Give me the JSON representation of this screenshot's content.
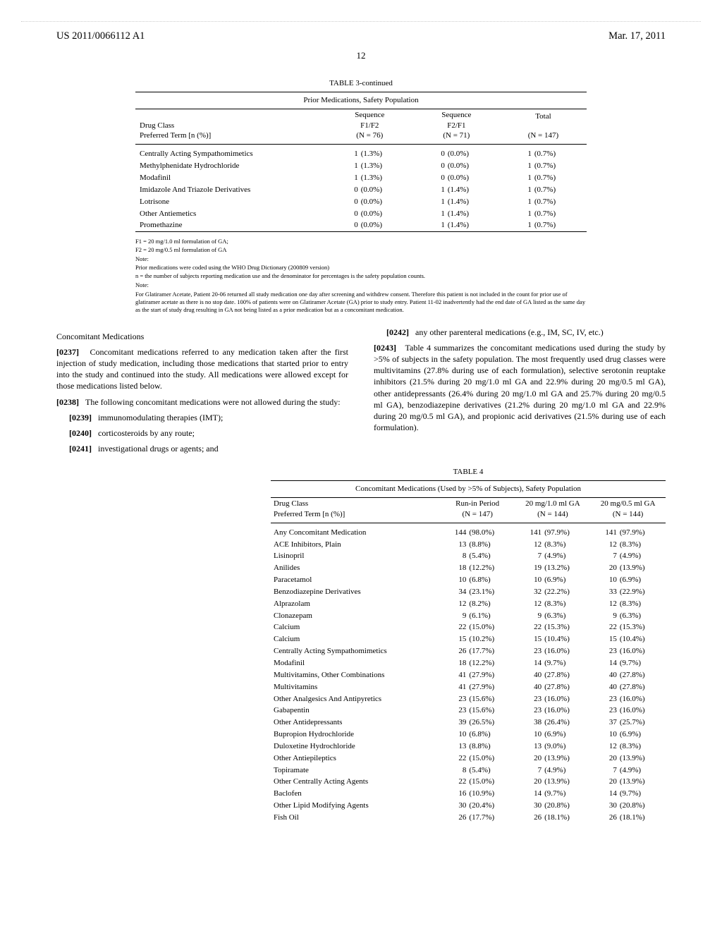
{
  "header": {
    "pubnum": "US 2011/0066112 A1",
    "date": "Mar. 17, 2011",
    "pagenum": "12"
  },
  "table3": {
    "caption": "TABLE 3-continued",
    "subcaption": "Prior Medications, Safety Population",
    "col_headers": {
      "drug": "Drug Class",
      "drug2": "Preferred Term [n (%)]",
      "seq1": "Sequence",
      "seq1b": "F1/F2",
      "seq1n": "(N = 76)",
      "seq2": "Sequence",
      "seq2b": "F2/F1",
      "seq2n": "(N = 71)",
      "total": "Total",
      "totaln": "(N = 147)"
    },
    "rows": [
      {
        "label": "Centrally Acting Sympathomimetics",
        "n1": "1",
        "p1": "(1.3%)",
        "n2": "0",
        "p2": "(0.0%)",
        "nt": "1",
        "pt": "(0.7%)"
      },
      {
        "label": "Methylphenidate Hydrochloride",
        "n1": "1",
        "p1": "(1.3%)",
        "n2": "0",
        "p2": "(0.0%)",
        "nt": "1",
        "pt": "(0.7%)"
      },
      {
        "label": "Modafinil",
        "n1": "1",
        "p1": "(1.3%)",
        "n2": "0",
        "p2": "(0.0%)",
        "nt": "1",
        "pt": "(0.7%)"
      },
      {
        "label": "Imidazole And Triazole Derivatives",
        "n1": "0",
        "p1": "(0.0%)",
        "n2": "1",
        "p2": "(1.4%)",
        "nt": "1",
        "pt": "(0.7%)"
      },
      {
        "label": "Lotrisone",
        "n1": "0",
        "p1": "(0.0%)",
        "n2": "1",
        "p2": "(1.4%)",
        "nt": "1",
        "pt": "(0.7%)"
      },
      {
        "label": "Other Antiemetics",
        "n1": "0",
        "p1": "(0.0%)",
        "n2": "1",
        "p2": "(1.4%)",
        "nt": "1",
        "pt": "(0.7%)"
      },
      {
        "label": "Promethazine",
        "n1": "0",
        "p1": "(0.0%)",
        "n2": "1",
        "p2": "(1.4%)",
        "nt": "1",
        "pt": "(0.7%)"
      }
    ],
    "footnotes": [
      "F1 = 20 mg/1.0 ml formulation of GA;",
      "F2 = 20 mg/0.5 ml formulation of GA",
      "Note:",
      "Prior medications were coded using the WHO Drug Dictionary (200809 version)",
      "n = the number of subjects reporting medication use and the denominator for percentages is the safety population counts.",
      "Note:",
      "For Glatiramer Acetate, Patient 20-06 returned all study medication one day after screening and withdrew consent. Therefore this patient is not included in the count for prior use of glatiramer acetate as there is no stop date. 100% of patients were on Glatiramer Acetate (GA) prior to study entry. Patient 11-02 inadvertently had the end date of GA listed as the same day as the start of study drug resulting in GA not being listed as a prior medication but as a concomitant medication."
    ]
  },
  "left": {
    "heading": "Concomitant Medications",
    "p0237": "Concomitant medications referred to any medication taken after the first injection of study medication, including those medications that started prior to entry into the study and continued into the study. All medications were allowed except for those medications listed below.",
    "p0238": "The following concomitant medications were not allowed during the study:",
    "p0239": "immunomodulating therapies (IMT);",
    "p0240": "corticosteroids by any route;",
    "p0241": "investigational drugs or agents; and"
  },
  "right": {
    "p0242": "any other parenteral medications (e.g., IM, SC, IV, etc.)",
    "p0243": "Table 4 summarizes the concomitant medications used during the study by >5% of subjects in the safety population. The most frequently used drug classes were multivitamins (27.8% during use of each formulation), selective serotonin reuptake inhibitors (21.5% during 20 mg/1.0 ml GA and 22.9% during 20 mg/0.5 ml GA), other antidepressants (26.4% during 20 mg/1.0 ml GA and 25.7% during 20 mg/0.5 ml GA), benzodiazepine derivatives (21.2% during 20 mg/1.0 ml GA and 22.9% during 20 mg/0.5 ml GA), and propionic acid derivatives (21.5% during use of each formulation)."
  },
  "table4": {
    "caption": "TABLE 4",
    "subcaption": "Concomitant Medications (Used by >5% of Subjects), Safety Population",
    "col_headers": {
      "drug": "Drug Class",
      "drug2": "Preferred Term [n (%)]",
      "c1": "Run-in Period",
      "c1n": "(N = 147)",
      "c2": "20 mg/1.0 ml GA",
      "c2n": "(N = 144)",
      "c3": "20 mg/0.5 ml GA",
      "c3n": "(N = 144)"
    },
    "rows": [
      {
        "label": "Any Concomitant Medication",
        "n1": "144",
        "p1": "(98.0%)",
        "n2": "141",
        "p2": "(97.9%)",
        "n3": "141",
        "p3": "(97.9%)"
      },
      {
        "label": "ACE Inhibitors, Plain",
        "n1": "13",
        "p1": "(8.8%)",
        "n2": "12",
        "p2": "(8.3%)",
        "n3": "12",
        "p3": "(8.3%)"
      },
      {
        "label": "Lisinopril",
        "n1": "8",
        "p1": "(5.4%)",
        "n2": "7",
        "p2": "(4.9%)",
        "n3": "7",
        "p3": "(4.9%)"
      },
      {
        "label": "Anilides",
        "n1": "18",
        "p1": "(12.2%)",
        "n2": "19",
        "p2": "(13.2%)",
        "n3": "20",
        "p3": "(13.9%)"
      },
      {
        "label": "Paracetamol",
        "n1": "10",
        "p1": "(6.8%)",
        "n2": "10",
        "p2": "(6.9%)",
        "n3": "10",
        "p3": "(6.9%)"
      },
      {
        "label": "Benzodiazepine Derivatives",
        "n1": "34",
        "p1": "(23.1%)",
        "n2": "32",
        "p2": "(22.2%)",
        "n3": "33",
        "p3": "(22.9%)"
      },
      {
        "label": "Alprazolam",
        "n1": "12",
        "p1": "(8.2%)",
        "n2": "12",
        "p2": "(8.3%)",
        "n3": "12",
        "p3": "(8.3%)"
      },
      {
        "label": "Clonazepam",
        "n1": "9",
        "p1": "(6.1%)",
        "n2": "9",
        "p2": "(6.3%)",
        "n3": "9",
        "p3": "(6.3%)"
      },
      {
        "label": "Calcium",
        "n1": "22",
        "p1": "(15.0%)",
        "n2": "22",
        "p2": "(15.3%)",
        "n3": "22",
        "p3": "(15.3%)"
      },
      {
        "label": "Calcium",
        "n1": "15",
        "p1": "(10.2%)",
        "n2": "15",
        "p2": "(10.4%)",
        "n3": "15",
        "p3": "(10.4%)"
      },
      {
        "label": "Centrally Acting Sympathomimetics",
        "n1": "26",
        "p1": "(17.7%)",
        "n2": "23",
        "p2": "(16.0%)",
        "n3": "23",
        "p3": "(16.0%)"
      },
      {
        "label": "Modafinil",
        "n1": "18",
        "p1": "(12.2%)",
        "n2": "14",
        "p2": "(9.7%)",
        "n3": "14",
        "p3": "(9.7%)"
      },
      {
        "label": "Multivitamins, Other Combinations",
        "n1": "41",
        "p1": "(27.9%)",
        "n2": "40",
        "p2": "(27.8%)",
        "n3": "40",
        "p3": "(27.8%)"
      },
      {
        "label": "Multivitamins",
        "n1": "41",
        "p1": "(27.9%)",
        "n2": "40",
        "p2": "(27.8%)",
        "n3": "40",
        "p3": "(27.8%)"
      },
      {
        "label": "Other Analgesics And Antipyretics",
        "n1": "23",
        "p1": "(15.6%)",
        "n2": "23",
        "p2": "(16.0%)",
        "n3": "23",
        "p3": "(16.0%)"
      },
      {
        "label": "Gabapentin",
        "n1": "23",
        "p1": "(15.6%)",
        "n2": "23",
        "p2": "(16.0%)",
        "n3": "23",
        "p3": "(16.0%)"
      },
      {
        "label": "Other Antidepressants",
        "n1": "39",
        "p1": "(26.5%)",
        "n2": "38",
        "p2": "(26.4%)",
        "n3": "37",
        "p3": "(25.7%)"
      },
      {
        "label": "Bupropion Hydrochloride",
        "n1": "10",
        "p1": "(6.8%)",
        "n2": "10",
        "p2": "(6.9%)",
        "n3": "10",
        "p3": "(6.9%)"
      },
      {
        "label": "Duloxetine Hydrochloride",
        "n1": "13",
        "p1": "(8.8%)",
        "n2": "13",
        "p2": "(9.0%)",
        "n3": "12",
        "p3": "(8.3%)"
      },
      {
        "label": "Other Antiepileptics",
        "n1": "22",
        "p1": "(15.0%)",
        "n2": "20",
        "p2": "(13.9%)",
        "n3": "20",
        "p3": "(13.9%)"
      },
      {
        "label": "Topiramate",
        "n1": "8",
        "p1": "(5.4%)",
        "n2": "7",
        "p2": "(4.9%)",
        "n3": "7",
        "p3": "(4.9%)"
      },
      {
        "label": "Other Centrally Acting Agents",
        "n1": "22",
        "p1": "(15.0%)",
        "n2": "20",
        "p2": "(13.9%)",
        "n3": "20",
        "p3": "(13.9%)"
      },
      {
        "label": "Baclofen",
        "n1": "16",
        "p1": "(10.9%)",
        "n2": "14",
        "p2": "(9.7%)",
        "n3": "14",
        "p3": "(9.7%)"
      },
      {
        "label": "Other Lipid Modifying Agents",
        "n1": "30",
        "p1": "(20.4%)",
        "n2": "30",
        "p2": "(20.8%)",
        "n3": "30",
        "p3": "(20.8%)"
      },
      {
        "label": "Fish Oil",
        "n1": "26",
        "p1": "(17.7%)",
        "n2": "26",
        "p2": "(18.1%)",
        "n3": "26",
        "p3": "(18.1%)"
      }
    ]
  }
}
